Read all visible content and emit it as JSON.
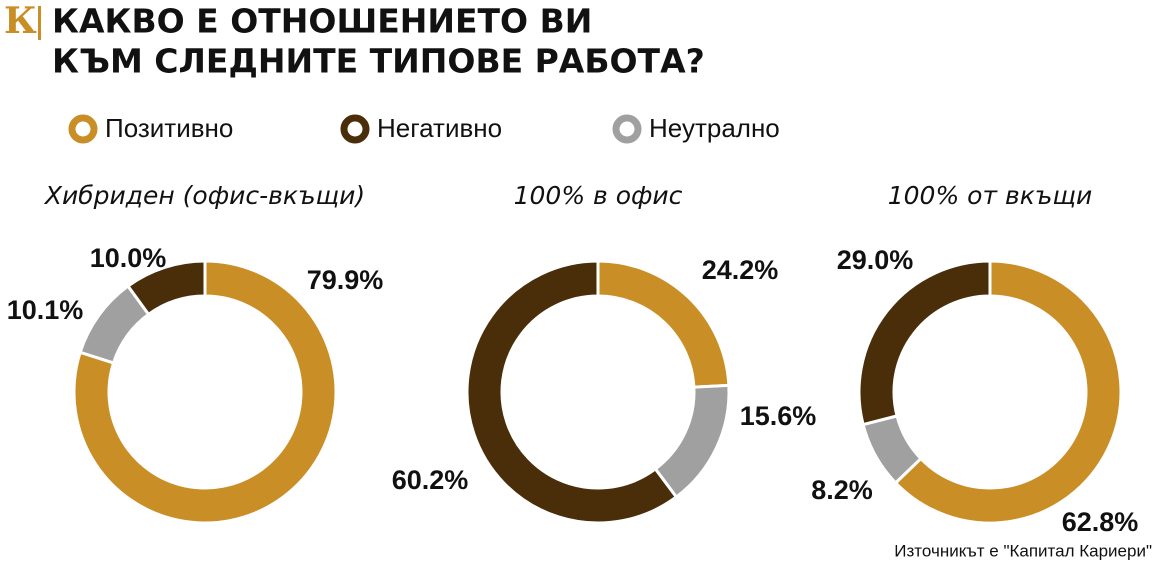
{
  "logo": "К",
  "title": [
    "КАКВО Е ОТНОШЕНИЕТО ВИ",
    "КЪМ СЛЕДНИТЕ ТИПОВЕ РАБОТА?"
  ],
  "legend": [
    {
      "name": "Позитивно",
      "color": "#c98e25"
    },
    {
      "name": "Негативно",
      "color": "#4a2e0a"
    },
    {
      "name": "Неутрално",
      "color": "#a0a0a0"
    }
  ],
  "chart_data": [
    {
      "type": "pie",
      "title": "Хибриден (офис-вкъщи)",
      "values": [
        79.9,
        10.0,
        10.1
      ],
      "value_labels": [
        "79.9%",
        "10.0%",
        "10.1%"
      ]
    },
    {
      "type": "pie",
      "title": "100% в офис",
      "values": [
        24.2,
        60.2,
        15.6
      ],
      "value_labels": [
        "24.2%",
        "60.2%",
        "15.6%"
      ]
    },
    {
      "type": "pie",
      "title": "100% от вкъщи",
      "values": [
        62.8,
        29.0,
        8.2
      ],
      "value_labels": [
        "62.8%",
        "29.0%",
        "8.2%"
      ]
    }
  ],
  "source": "Източникът е \"Капитал Кариери\""
}
